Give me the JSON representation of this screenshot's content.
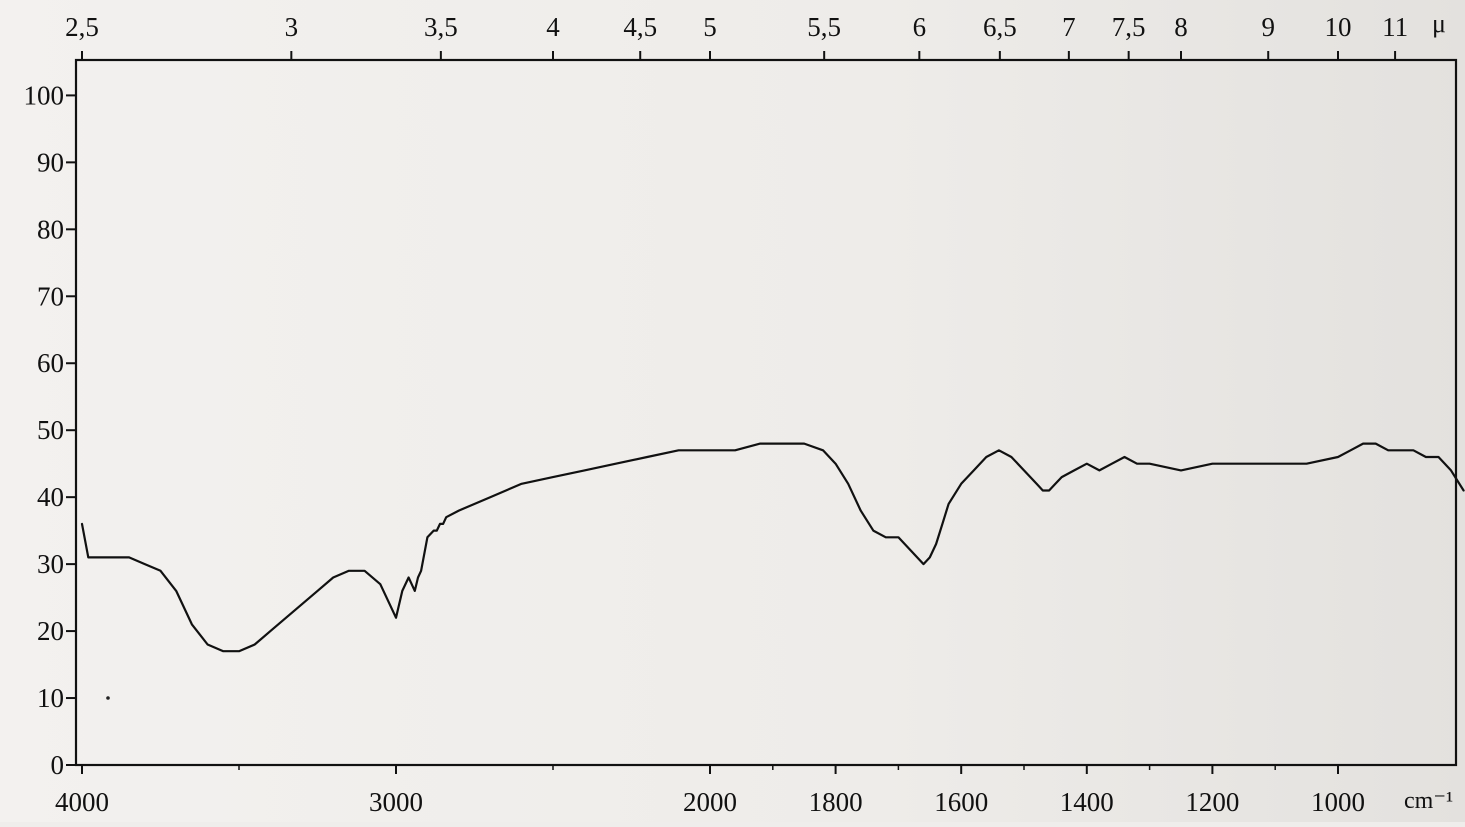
{
  "chart_data": {
    "type": "line",
    "title": "",
    "xlabel_bottom": "cm⁻¹",
    "xlabel_top": "μ",
    "ylabel": "",
    "grid": false,
    "bottom_axis": {
      "unit": "cm-1",
      "ticks": [
        "4000",
        "3000",
        "2000",
        "1800",
        "1600",
        "1400",
        "1200",
        "1000"
      ]
    },
    "top_axis": {
      "unit": "micrometre",
      "ticks": [
        "2,5",
        "3",
        "3,5",
        "4",
        "4,5",
        "5",
        "5,5",
        "6",
        "6,5",
        "7",
        "7,5",
        "8",
        "9",
        "10",
        "11"
      ]
    },
    "y_axis": {
      "ylim": [
        0,
        105
      ],
      "ticks": [
        "0",
        "10",
        "20",
        "30",
        "40",
        "50",
        "60",
        "70",
        "80",
        "90",
        "100"
      ]
    },
    "series": [
      {
        "color": "#111111",
        "x": [
          4000,
          3980,
          3950,
          3900,
          3850,
          3800,
          3750,
          3700,
          3650,
          3600,
          3550,
          3500,
          3450,
          3400,
          3350,
          3300,
          3250,
          3200,
          3150,
          3100,
          3050,
          3000,
          2980,
          2960,
          2950,
          2940,
          2930,
          2920,
          2900,
          2880,
          2870,
          2860,
          2850,
          2840,
          2800,
          2700,
          2600,
          2500,
          2400,
          2300,
          2200,
          2100,
          2050,
          2000,
          1960,
          1920,
          1880,
          1850,
          1820,
          1800,
          1780,
          1760,
          1740,
          1720,
          1700,
          1680,
          1660,
          1650,
          1640,
          1630,
          1620,
          1600,
          1580,
          1560,
          1540,
          1520,
          1500,
          1480,
          1470,
          1460,
          1450,
          1440,
          1420,
          1400,
          1380,
          1360,
          1340,
          1320,
          1300,
          1250,
          1200,
          1150,
          1100,
          1050,
          1000,
          980,
          960,
          940,
          920,
          900,
          880,
          860,
          840,
          820,
          800
        ],
        "y": [
          36,
          31,
          31,
          31,
          31,
          30,
          29,
          26,
          21,
          18,
          17,
          17,
          18,
          20,
          22,
          24,
          26,
          28,
          29,
          29,
          27,
          22,
          26,
          28,
          27,
          26,
          28,
          29,
          34,
          35,
          35,
          36,
          36,
          37,
          38,
          40,
          42,
          43,
          44,
          45,
          46,
          47,
          47,
          47,
          47,
          48,
          48,
          48,
          47,
          45,
          42,
          38,
          35,
          34,
          34,
          32,
          30,
          31,
          33,
          36,
          39,
          42,
          44,
          46,
          47,
          46,
          44,
          42,
          41,
          41,
          42,
          43,
          44,
          45,
          44,
          45,
          46,
          45,
          45,
          44,
          45,
          45,
          45,
          45,
          46,
          47,
          48,
          48,
          47,
          47,
          47,
          46,
          46,
          44,
          41
        ]
      }
    ]
  }
}
